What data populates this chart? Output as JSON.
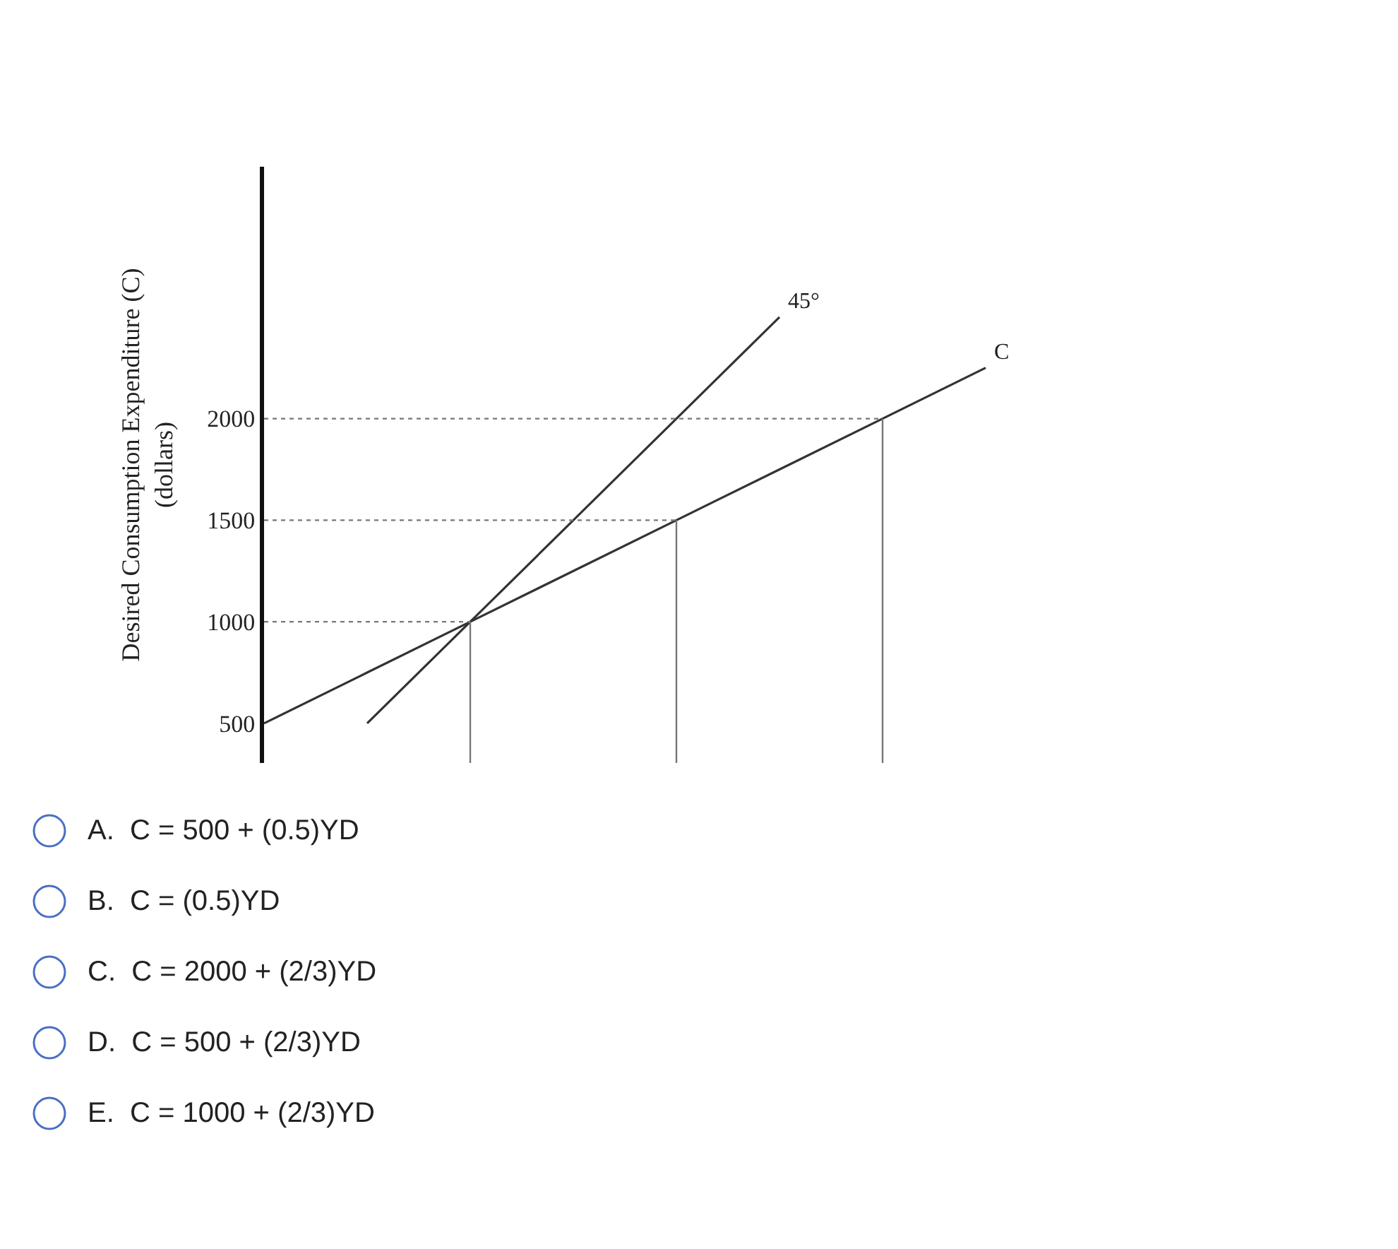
{
  "chart_data": {
    "type": "line",
    "ylabel": "Desired Consumption Expenditure (C)\n(dollars)",
    "categories": [
      null,
      null,
      null,
      null,
      null,
      null,
      null,
      null,
      null,
      null,
      null,
      null
    ],
    "ylim": [
      305,
      3240
    ],
    "yticks": [
      500,
      1000,
      1500,
      2000
    ],
    "tick_labels": "y",
    "legend": false,
    "marker": "none",
    "series": [
      {
        "name": "C",
        "color": "#333333",
        "values": [
          500,
          750,
          1000,
          1250,
          1500,
          1750,
          2000,
          2250,
          null,
          null,
          null,
          null
        ]
      },
      {
        "name": "45°",
        "color": "#333333",
        "values": [
          null,
          500,
          1000,
          1500,
          2000,
          2500,
          null,
          null,
          null,
          null,
          null,
          null
        ]
      },
      {
        "color": "#777777",
        "line_style": "dotted",
        "values": [
          1000,
          1000,
          1000,
          null,
          null,
          null,
          null,
          null,
          null,
          null,
          null,
          null
        ],
        "errors": [
          null,
          null,
          [
            305,
            1000
          ],
          null,
          null,
          null,
          null,
          null,
          null,
          null,
          null,
          null
        ]
      },
      {
        "color": "#777777",
        "line_style": "dotted",
        "values": [
          1500,
          1500,
          1500,
          1500,
          1500,
          null,
          null,
          null,
          null,
          null,
          null,
          null
        ],
        "errors": [
          null,
          null,
          null,
          null,
          [
            305,
            1500
          ],
          null,
          null,
          null,
          null,
          null,
          null,
          null
        ]
      },
      {
        "color": "#777777",
        "line_style": "dotted",
        "values": [
          2000,
          2000,
          2000,
          2000,
          2000,
          2000,
          2000,
          null,
          null,
          null,
          null,
          null
        ],
        "errors": [
          null,
          null,
          null,
          null,
          null,
          null,
          [
            305,
            2000
          ],
          null,
          null,
          null,
          null,
          null
        ]
      }
    ],
    "annotations": [
      "A.  C = 500 + (0.5)YD",
      "B.  C = (0.5)YD",
      "C.  C = 2000 + (2/3)YD",
      "D.  C = 500 + (2/3)YD",
      "E.  C = 1000 + (2/3)YD"
    ]
  }
}
